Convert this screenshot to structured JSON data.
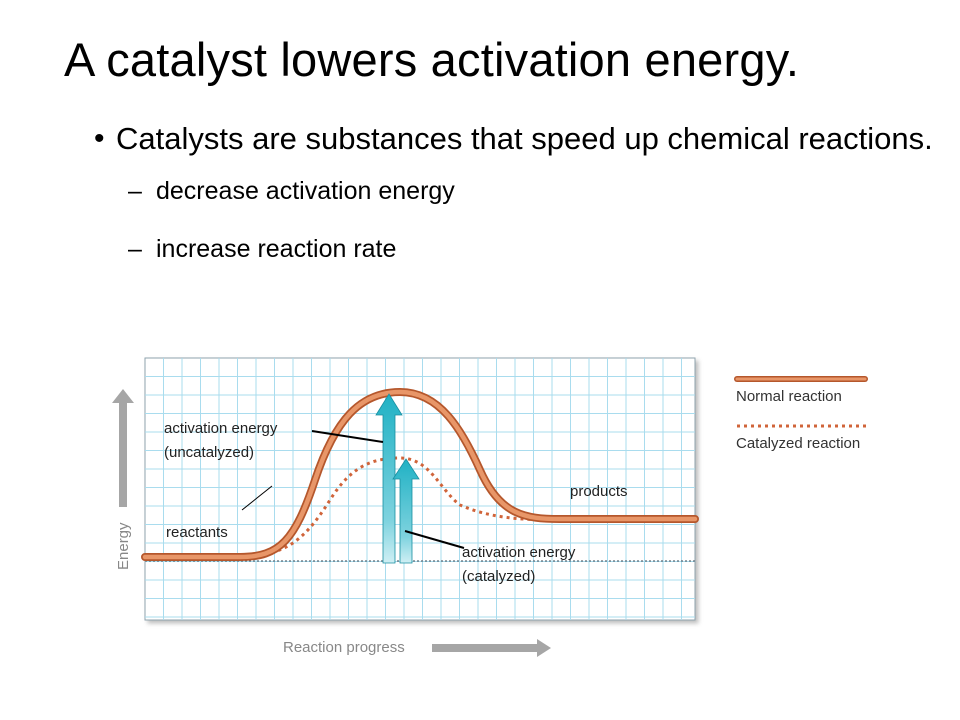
{
  "slide": {
    "title": "A catalyst lowers activation energy.",
    "bullet": "Catalysts are substances that speed up chemical reactions.",
    "subbullets": [
      "decrease activation energy",
      "increase reaction rate"
    ]
  },
  "diagram": {
    "y_axis_label": "Energy",
    "x_axis_label": "Reaction progress",
    "labels": {
      "activation_uncatalyzed_1": "activation energy",
      "activation_uncatalyzed_2": "(uncatalyzed)",
      "activation_catalyzed_1": "activation energy",
      "activation_catalyzed_2": "(catalyzed)",
      "reactants": "reactants",
      "products": "products"
    },
    "legend": {
      "normal": "Normal reaction",
      "catalyzed": "Catalyzed reaction"
    },
    "colors": {
      "curve": "#e0855a",
      "curve_stroke": "#b5572c",
      "dotted": "#d0643a",
      "arrow": "#29b3c6",
      "grid": "#a9dcee",
      "axis_arrow": "#a6a6a6"
    }
  }
}
